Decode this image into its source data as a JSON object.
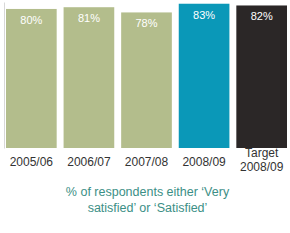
{
  "chart_data": {
    "type": "bar",
    "categories": [
      "2005/06",
      "2006/07",
      "2007/08",
      "2008/09",
      "Target 2008/09"
    ],
    "values": [
      80,
      81,
      78,
      83,
      82
    ],
    "value_labels": [
      "80%",
      "81%",
      "78%",
      "83%",
      "82%"
    ],
    "colors": [
      "#b3bd8c",
      "#b3bd8c",
      "#b3bd8c",
      "#0a98b8",
      "#2b2727"
    ],
    "x_label": "% of respondents either ‘Very satisfied’ or ‘Satisfied’",
    "ylim": [
      0,
      84
    ],
    "data_labels": true,
    "tick_labels": "x"
  }
}
